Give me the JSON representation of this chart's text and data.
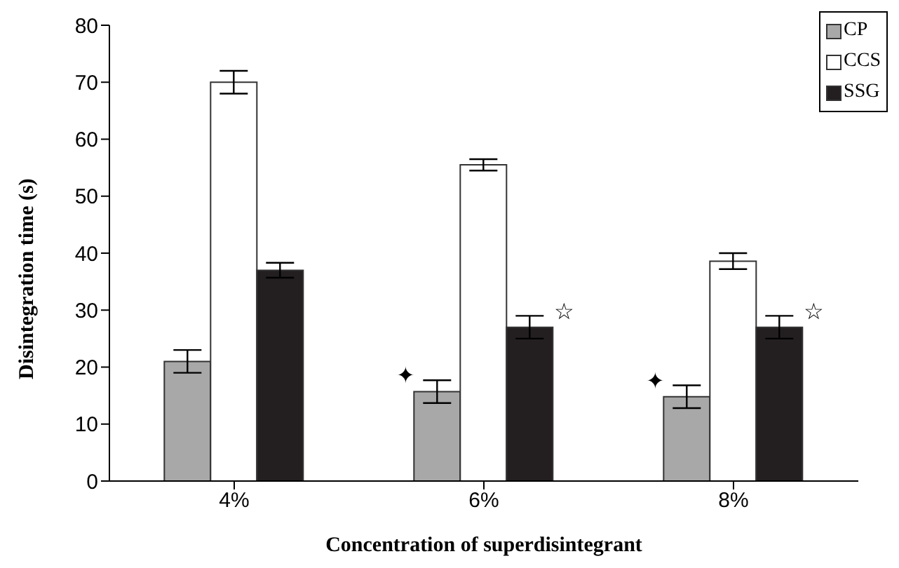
{
  "chart_data": {
    "type": "bar",
    "xlabel": "Concentration of superdisintegrant",
    "ylabel": "Disintegration time (s)",
    "categories": [
      "4%",
      "6%",
      "8%"
    ],
    "series": [
      {
        "name": "CP",
        "color": "#a8a8a8",
        "values": [
          21,
          15.7,
          14.8
        ],
        "errors": [
          2,
          2,
          2
        ],
        "value_labels": [
          null,
          "✦",
          "✦"
        ]
      },
      {
        "name": "CCS",
        "color": "#ffffff",
        "values": [
          70,
          55.5,
          38.6
        ],
        "errors": [
          2,
          1,
          1.4
        ]
      },
      {
        "name": "SSG",
        "color": "#231f20",
        "values": [
          37,
          27,
          27
        ],
        "errors": [
          1.3,
          2,
          2
        ],
        "value_labels": [
          null,
          "☆",
          "☆"
        ]
      }
    ],
    "ylim": [
      0,
      80
    ],
    "yticks": [
      0,
      10,
      20,
      30,
      40,
      50,
      60,
      70,
      80
    ],
    "grid": false,
    "legend": "top right"
  }
}
